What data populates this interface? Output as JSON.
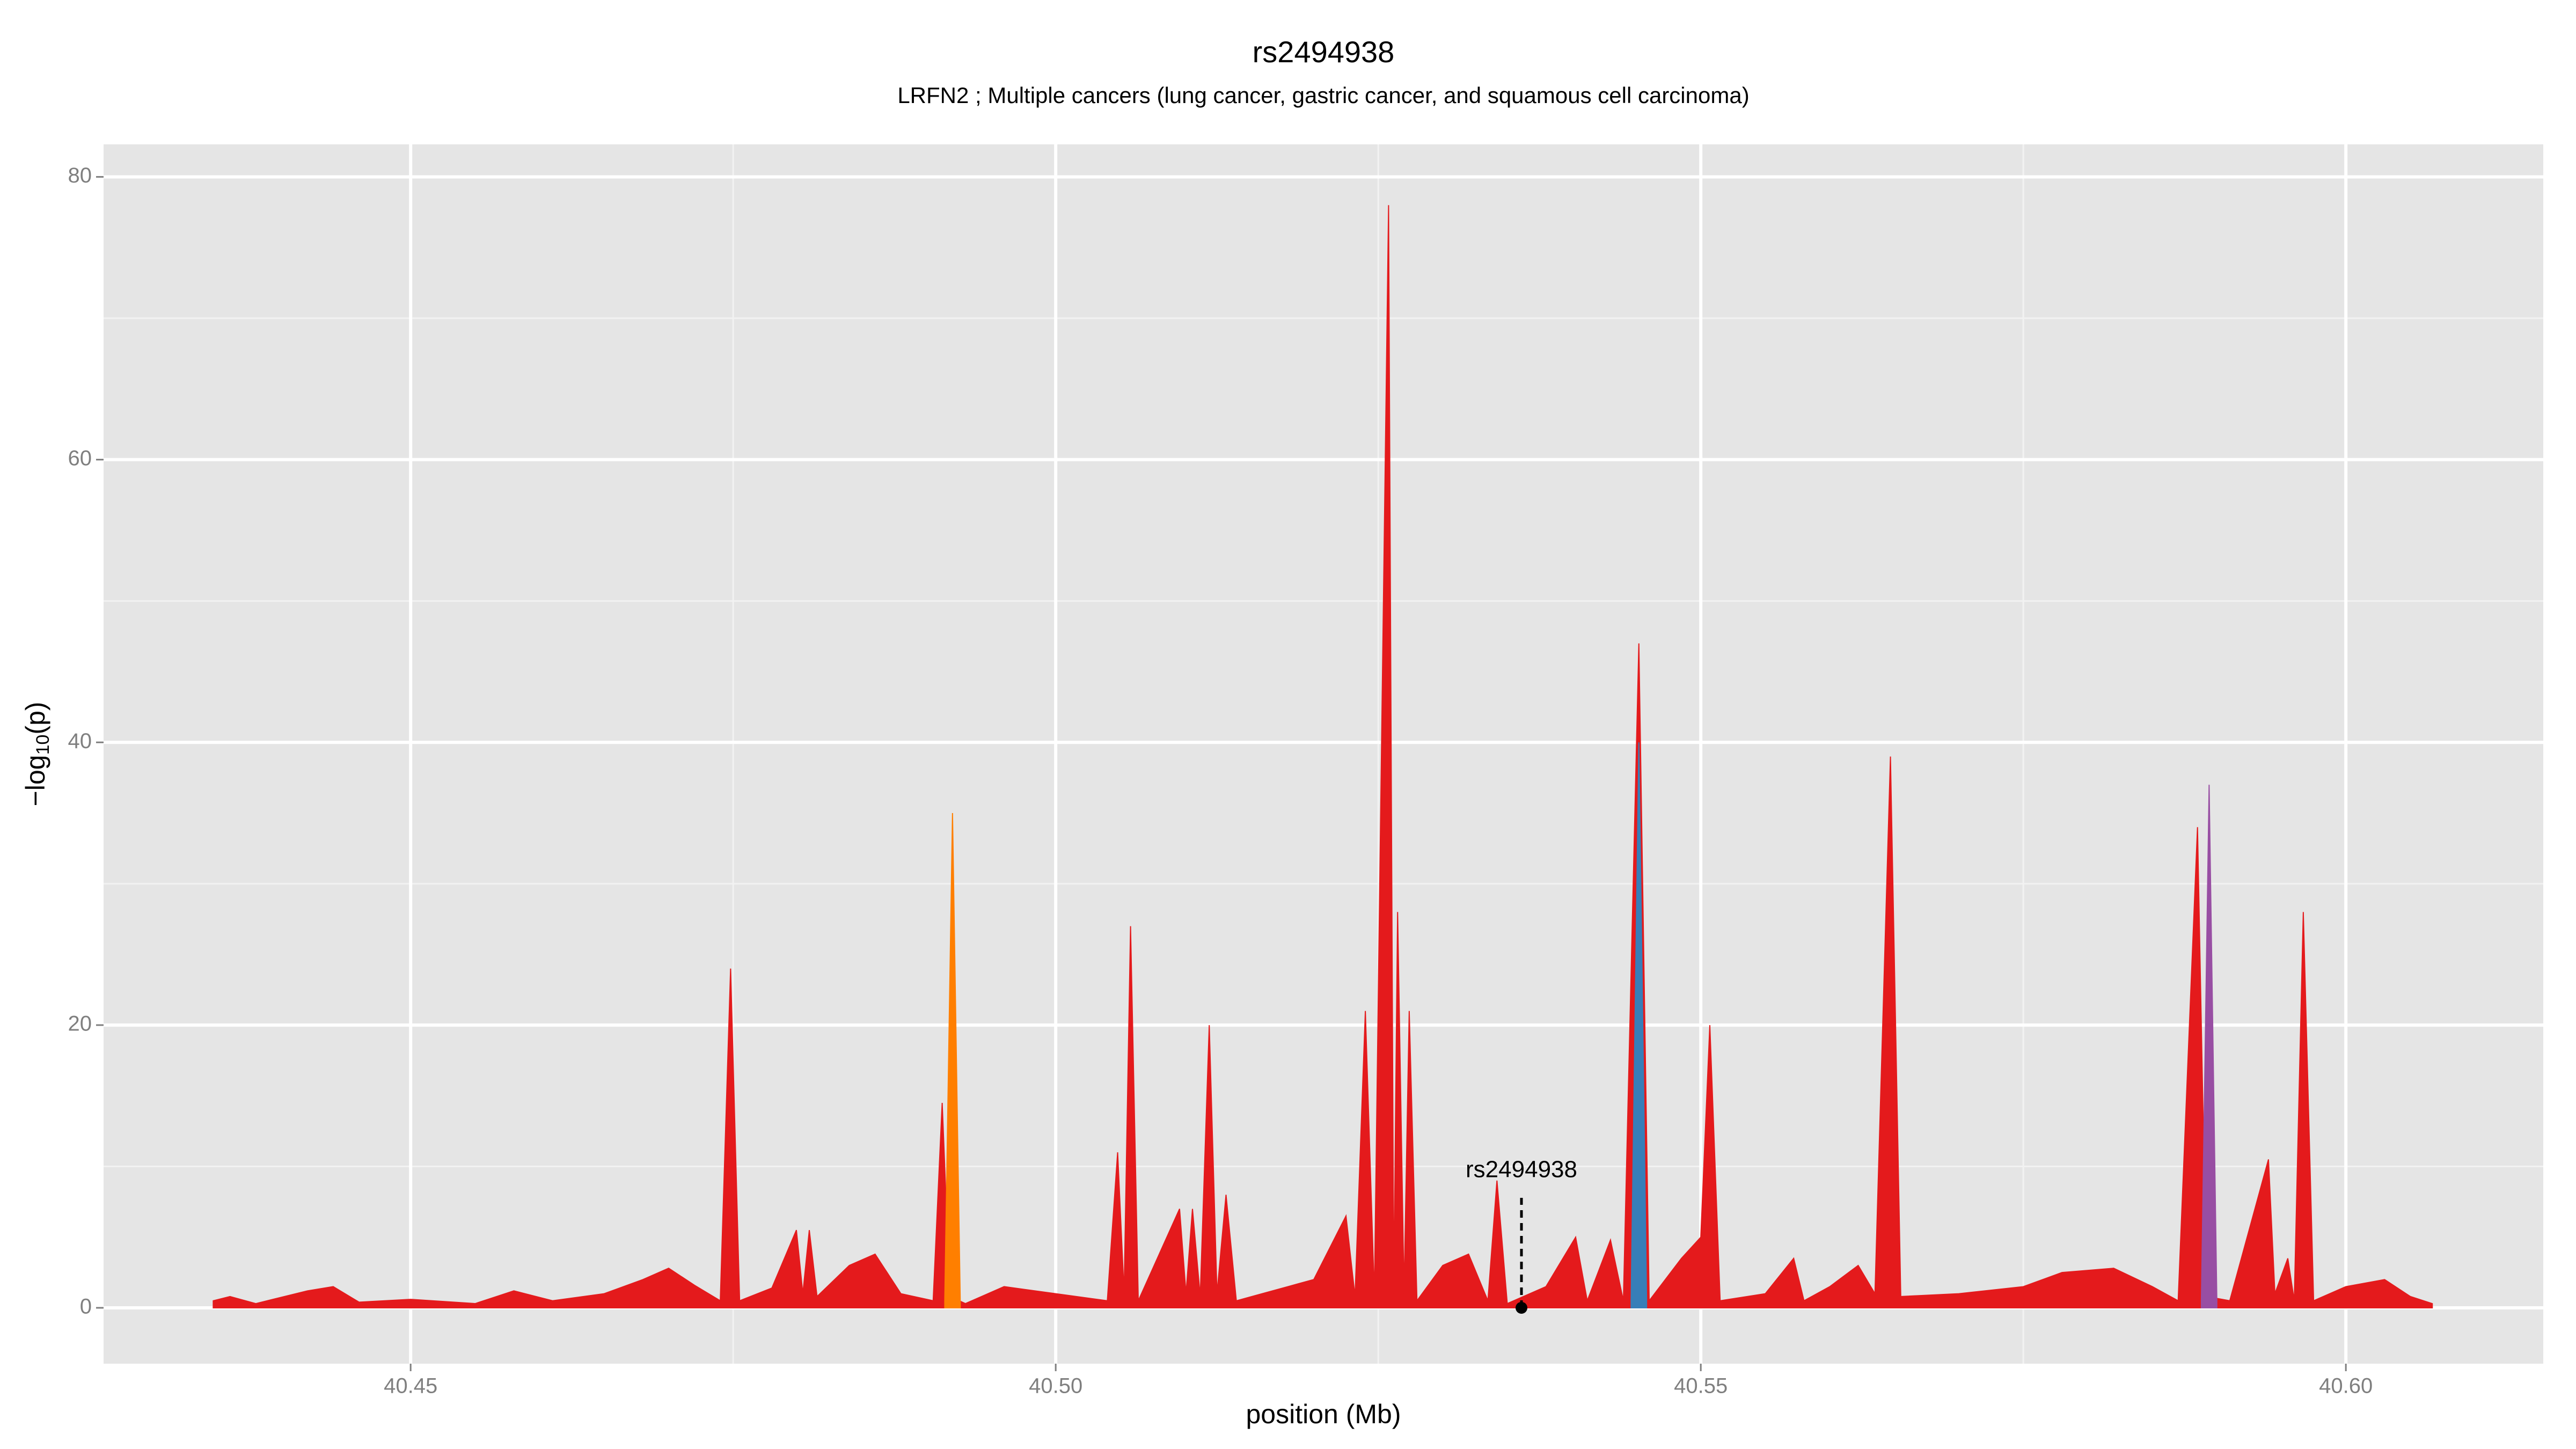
{
  "chart_data": {
    "type": "area",
    "title": "rs2494938",
    "subtitle": "LRFN2 ; Multiple cancers (lung cancer, gastric cancer, and squamous cell carcinoma)",
    "x_label": "position (Mb)",
    "y_label": [
      "−log",
      "10",
      "(p)"
    ],
    "xlim": [
      40.4262,
      40.6153
    ],
    "ylim": [
      -3.95,
      82.3
    ],
    "xticks": [
      40.45,
      {
        "value": 40.5,
        "label": "40.50"
      },
      40.55,
      {
        "value": 40.6,
        "label": "40.60"
      }
    ],
    "yticks": [
      0,
      20,
      40,
      60,
      80
    ],
    "grid": true,
    "series": [
      {
        "color": "#e41a1c",
        "x": [
          40.4347,
          40.436,
          40.438,
          40.442,
          40.444,
          40.446,
          40.45,
          40.455,
          40.458,
          40.461,
          40.465,
          40.468,
          40.47,
          40.472,
          40.474,
          40.4748,
          40.4755,
          40.478,
          40.4799,
          40.4804,
          40.4809,
          40.4815,
          40.484,
          40.486,
          40.488,
          40.4905,
          40.4912,
          40.4918,
          40.493,
          40.496,
          40.5,
          40.504,
          40.5048,
          40.5053,
          40.5058,
          40.5064,
          40.5096,
          40.5101,
          40.5106,
          40.5112,
          40.5119,
          40.5125,
          40.5132,
          40.514,
          40.518,
          40.52,
          40.5225,
          40.5232,
          40.524,
          40.5247,
          40.5258,
          40.5262,
          40.5265,
          40.527,
          40.5274,
          40.528,
          40.53,
          40.532,
          40.5335,
          40.5342,
          40.535,
          40.538,
          40.5403,
          40.5412,
          40.543,
          40.544,
          40.5452,
          40.546,
          40.5485,
          40.55,
          40.5507,
          40.5515,
          40.555,
          40.5572,
          40.558,
          40.56,
          40.5622,
          40.5635,
          40.5647,
          40.5655,
          40.57,
          40.575,
          40.578,
          40.582,
          40.585,
          40.587,
          40.5885,
          40.5892,
          40.591,
          40.594,
          40.5945,
          40.5955,
          40.596,
          40.5967,
          40.5975,
          40.6,
          40.603,
          40.605,
          40.6067
        ],
        "values": [
          0.5,
          0.8,
          0.3,
          1.2,
          1.5,
          0.4,
          0.6,
          0.3,
          1.2,
          0.5,
          1.0,
          2.0,
          2.8,
          1.6,
          0.5,
          24,
          0.5,
          1.4,
          5.5,
          1.0,
          5.5,
          0.8,
          3.0,
          3.8,
          1.0,
          0.5,
          14.5,
          0.8,
          0.3,
          1.5,
          1.0,
          0.5,
          11,
          1,
          27,
          0.5,
          7,
          1,
          7,
          0.8,
          20,
          1,
          8,
          0.5,
          1.5,
          2,
          6.5,
          0.8,
          21,
          0.8,
          78,
          1,
          28,
          1,
          21,
          0.5,
          3,
          3.8,
          0.5,
          9,
          0.3,
          1.5,
          5,
          0.5,
          4.8,
          0.5,
          47,
          0.5,
          3.5,
          5,
          20,
          0.5,
          1.0,
          3.5,
          0.5,
          1.5,
          3.0,
          1.0,
          39,
          0.8,
          1.0,
          1.5,
          2.5,
          2.8,
          1.5,
          0.5,
          34,
          0.8,
          0.5,
          10.5,
          1,
          3.5,
          0.5,
          28,
          0.5,
          1.5,
          2,
          0.8,
          0.3
        ]
      },
      {
        "color": "#ff7f00",
        "x": [
          40.4914,
          40.492,
          40.4926
        ],
        "values": [
          0.5,
          35,
          0.5
        ]
      },
      {
        "color": "#377eb8",
        "x": [
          40.5446,
          40.5452,
          40.5458
        ],
        "values": [
          0.5,
          40,
          0.5
        ]
      },
      {
        "color": "#984ea3",
        "x": [
          40.5888,
          40.5894,
          40.59
        ],
        "values": [
          0.5,
          37,
          0.5
        ]
      }
    ],
    "annotation": {
      "text": "rs2494938",
      "x": 40.5361,
      "y": 0
    }
  }
}
